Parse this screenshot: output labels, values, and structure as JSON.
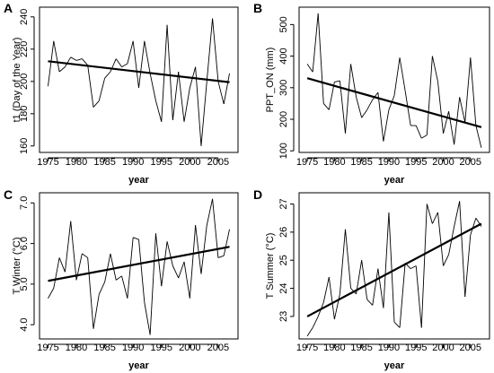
{
  "chart_data": [
    {
      "panel": "A",
      "type": "line",
      "xlabel": "year",
      "ylabel": "t1 (Day of the Year)",
      "xlim": [
        1973.5,
        2008.5
      ],
      "ylim": [
        156,
        246
      ],
      "xticks": [
        1975,
        1980,
        1985,
        1990,
        1995,
        2000,
        2005
      ],
      "yticks": [
        160,
        180,
        200,
        220,
        240
      ],
      "x": [
        1975,
        1976,
        1977,
        1978,
        1979,
        1980,
        1981,
        1982,
        1983,
        1984,
        1985,
        1986,
        1987,
        1988,
        1989,
        1990,
        1991,
        1992,
        1993,
        1994,
        1995,
        1996,
        1997,
        1998,
        1999,
        2000,
        2001,
        2002,
        2003,
        2004,
        2005,
        2006,
        2007
      ],
      "y": [
        197,
        225,
        206,
        209,
        215,
        213,
        214,
        210,
        184,
        188,
        202,
        206,
        214,
        209,
        211,
        225,
        196,
        225,
        205,
        188,
        175,
        235,
        176,
        206,
        175,
        196,
        209,
        160,
        200,
        239,
        200,
        186,
        205
      ],
      "trend": {
        "x": [
          1975,
          2007
        ],
        "y": [
          212.5,
          199.5
        ]
      }
    },
    {
      "panel": "B",
      "type": "line",
      "xlabel": "year",
      "ylabel": "PPT_ON (mm)",
      "xlim": [
        1973.5,
        2008.5
      ],
      "ylim": [
        95,
        555
      ],
      "xticks": [
        1975,
        1980,
        1985,
        1990,
        1995,
        2000,
        2005
      ],
      "yticks": [
        100,
        200,
        300,
        400,
        500
      ],
      "x": [
        1975,
        1976,
        1977,
        1978,
        1979,
        1980,
        1981,
        1982,
        1983,
        1984,
        1985,
        1986,
        1987,
        1988,
        1989,
        1990,
        1991,
        1992,
        1993,
        1994,
        1995,
        1996,
        1997,
        1998,
        1999,
        2000,
        2001,
        2002,
        2003,
        2004,
        2005,
        2006,
        2007
      ],
      "y": [
        375,
        350,
        535,
        250,
        230,
        318,
        322,
        155,
        375,
        270,
        205,
        230,
        262,
        285,
        130,
        230,
        275,
        395,
        290,
        180,
        180,
        140,
        150,
        400,
        320,
        155,
        225,
        120,
        270,
        190,
        395,
        180,
        110
      ],
      "trend": {
        "x": [
          1975,
          2007
        ],
        "y": [
          330,
          175
        ]
      }
    },
    {
      "panel": "C",
      "type": "line",
      "xlabel": "year",
      "ylabel": "T Winter (°C)",
      "xlim": [
        1973.5,
        2008.5
      ],
      "ylim": [
        3.65,
        7.25
      ],
      "xticks": [
        1975,
        1980,
        1985,
        1990,
        1995,
        2000,
        2005
      ],
      "yticks": [
        "4.0",
        "5.0",
        "6.0",
        "7.0"
      ],
      "x": [
        1975,
        1976,
        1977,
        1978,
        1979,
        1980,
        1981,
        1982,
        1983,
        1984,
        1985,
        1986,
        1987,
        1988,
        1989,
        1990,
        1991,
        1992,
        1993,
        1994,
        1995,
        1996,
        1997,
        1998,
        1999,
        2000,
        2001,
        2002,
        2003,
        2004,
        2005,
        2006,
        2007
      ],
      "y": [
        4.65,
        4.9,
        5.65,
        5.3,
        6.55,
        5.1,
        5.75,
        5.65,
        3.9,
        4.75,
        5.05,
        5.75,
        5.1,
        5.2,
        4.65,
        6.15,
        6.1,
        4.55,
        3.75,
        6.25,
        4.95,
        6.05,
        5.45,
        5.15,
        5.55,
        4.65,
        6.45,
        5.25,
        6.45,
        7.1,
        5.65,
        5.7,
        6.35
      ],
      "trend": {
        "x": [
          1975,
          2007
        ],
        "y": [
          5.08,
          5.92
        ]
      }
    },
    {
      "panel": "D",
      "type": "line",
      "xlabel": "year",
      "ylabel": "T Summer (°C)",
      "xlim": [
        1973.5,
        2008.5
      ],
      "ylim": [
        22.2,
        27.4
      ],
      "xticks": [
        1975,
        1980,
        1985,
        1990,
        1995,
        2000,
        2005
      ],
      "yticks": [
        23,
        24,
        25,
        26,
        27
      ],
      "x": [
        1975,
        1976,
        1977,
        1978,
        1979,
        1980,
        1981,
        1982,
        1983,
        1984,
        1985,
        1986,
        1987,
        1988,
        1989,
        1990,
        1991,
        1992,
        1993,
        1994,
        1995,
        1996,
        1997,
        1998,
        1999,
        2000,
        2001,
        2002,
        2003,
        2004,
        2005,
        2006,
        2007
      ],
      "y": [
        22.3,
        22.6,
        23.0,
        23.5,
        24.4,
        22.9,
        23.8,
        26.1,
        24.0,
        23.8,
        25.0,
        23.6,
        23.4,
        24.7,
        23.3,
        26.7,
        22.8,
        22.6,
        24.9,
        24.7,
        24.8,
        22.6,
        27.0,
        26.3,
        26.7,
        24.8,
        25.2,
        26.2,
        27.1,
        23.7,
        25.9,
        26.5,
        26.2
      ],
      "trend": {
        "x": [
          1975,
          2007
        ],
        "y": [
          23.0,
          26.3
        ]
      }
    }
  ]
}
